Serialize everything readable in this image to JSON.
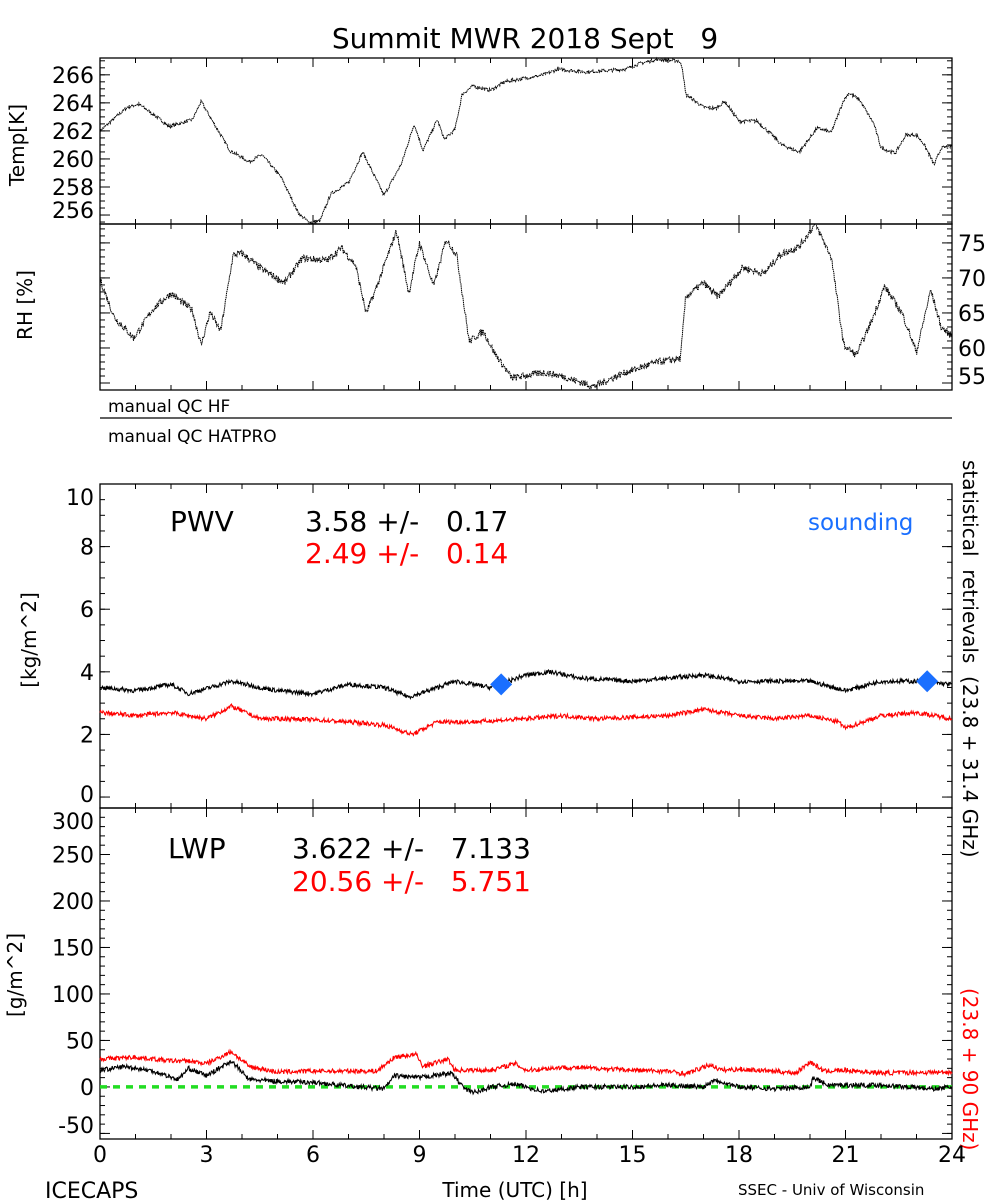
{
  "title": "Summit MWR 2018 Sept   9",
  "colors": {
    "black": "#000000",
    "red": "#ff0000",
    "sounding": "#1a6fff",
    "zero_line": "#22dd22"
  },
  "chart_data": [
    {
      "type": "line",
      "ylabel": "Temp[K]",
      "ylim": [
        255.36,
        267.2
      ],
      "xlim": [
        0,
        24
      ],
      "yticks": [
        "256",
        "258",
        "260",
        "262",
        "264",
        "266"
      ],
      "series": [
        {
          "color": "#000000",
          "x": [
            0,
            0.77,
            1.1,
            1.6,
            1.95,
            2.6,
            2.85,
            3.1,
            3.66,
            4.2,
            4.56,
            5.1,
            5.6,
            5.9,
            6.2,
            6.5,
            7.0,
            7.4,
            8.0,
            8.5,
            8.85,
            9.1,
            9.5,
            9.7,
            10.0,
            10.2,
            10.5,
            11.0,
            11.4,
            12.5,
            12.9,
            13.7,
            14.8,
            15.2,
            15.7,
            16.3,
            16.4,
            16.5,
            17.0,
            17.35,
            17.6,
            18.0,
            18.5,
            18.9,
            19.2,
            19.7,
            20.2,
            20.6,
            20.95,
            21.1,
            21.4,
            21.8,
            22.0,
            22.4,
            22.7,
            23.0,
            23.2,
            23.5,
            23.7,
            24
          ],
          "y": [
            262.0,
            263.7,
            263.9,
            263.0,
            262.3,
            262.8,
            264.1,
            263.0,
            260.6,
            259.8,
            260.3,
            258.7,
            256.1,
            255.45,
            255.6,
            257.5,
            258.3,
            260.5,
            257.4,
            259.7,
            262.5,
            260.6,
            262.8,
            261.4,
            262.1,
            264.6,
            265.2,
            264.9,
            265.5,
            266.0,
            266.4,
            266.2,
            266.4,
            266.8,
            267.1,
            267.0,
            266.6,
            264.6,
            263.7,
            263.6,
            264.1,
            262.7,
            262.7,
            261.8,
            261.0,
            260.5,
            262.2,
            261.9,
            264.2,
            264.7,
            264.2,
            262.5,
            260.8,
            260.4,
            261.7,
            261.7,
            261.1,
            259.6,
            260.8,
            260.9
          ]
        }
      ]
    },
    {
      "type": "line",
      "ylabel": "RH [%]",
      "ylim": [
        54,
        77.7
      ],
      "xlim": [
        0,
        24
      ],
      "yticks": [
        "55",
        "60",
        "65",
        "70",
        "75"
      ],
      "series": [
        {
          "color": "#000000",
          "x": [
            0,
            0.4,
            0.95,
            1.5,
            2.0,
            2.6,
            2.85,
            3.1,
            3.4,
            3.75,
            4.0,
            4.55,
            5.2,
            5.7,
            6.4,
            6.8,
            7.2,
            7.5,
            7.8,
            8.35,
            8.7,
            9.0,
            9.4,
            9.75,
            10.05,
            10.4,
            10.8,
            11.1,
            11.6,
            12.5,
            13.0,
            13.9,
            14.8,
            15.7,
            16.35,
            16.5,
            17.0,
            17.4,
            18.1,
            18.7,
            19.15,
            19.7,
            20.15,
            20.6,
            20.95,
            21.3,
            21.7,
            22.1,
            22.6,
            23.0,
            23.4,
            23.7,
            24
          ],
          "y": [
            69.8,
            64.4,
            61.4,
            65.6,
            67.8,
            65.4,
            60.4,
            65.1,
            62.4,
            73.3,
            73.5,
            71.3,
            69.3,
            72.8,
            72.5,
            74.3,
            71.8,
            64.9,
            68.8,
            76.7,
            67.8,
            75.0,
            68.8,
            75.5,
            73.3,
            60.9,
            62.4,
            59.4,
            55.7,
            56.5,
            56.0,
            54.5,
            56.5,
            58.0,
            58.5,
            67.3,
            69.3,
            67.3,
            71.5,
            70.6,
            73.3,
            74.5,
            77.7,
            73.0,
            60.4,
            59.0,
            63.4,
            68.8,
            64.9,
            59.4,
            68.3,
            62.9,
            61.7
          ]
        }
      ]
    },
    {
      "type": "line",
      "title": "PWV",
      "ylabel": "[kg/m^2]",
      "ylim": [
        -0.35,
        10
      ],
      "xlim": [
        0,
        24
      ],
      "yticks": [
        "0",
        "2",
        "4",
        "6",
        "8",
        "10"
      ],
      "stats": [
        {
          "text": "3.58 +/-   0.17",
          "color": "#000000"
        },
        {
          "text": "2.49 +/-   0.14",
          "color": "#ff0000"
        }
      ],
      "sounding_label": "sounding",
      "sounding": {
        "x": [
          11.3,
          23.3
        ],
        "y": [
          3.6,
          3.7
        ]
      },
      "series": [
        {
          "color": "#000000",
          "x": [
            0,
            1,
            2,
            2.5,
            3.7,
            4.5,
            5,
            6,
            7,
            8,
            8.7,
            9,
            10,
            10.5,
            11,
            12,
            12.7,
            13.5,
            15,
            16,
            17,
            18,
            19,
            20,
            21,
            22,
            23,
            24
          ],
          "y": [
            3.5,
            3.4,
            3.6,
            3.3,
            3.7,
            3.5,
            3.4,
            3.3,
            3.6,
            3.5,
            3.2,
            3.3,
            3.7,
            3.6,
            3.5,
            3.9,
            4.0,
            3.8,
            3.7,
            3.8,
            3.9,
            3.7,
            3.7,
            3.7,
            3.4,
            3.7,
            3.7,
            3.6
          ]
        },
        {
          "color": "#ff0000",
          "x": [
            0,
            1,
            2,
            3,
            3.7,
            4.5,
            5.5,
            7,
            8,
            8.8,
            9.5,
            10.5,
            12,
            13,
            14,
            16,
            17,
            18,
            19,
            20,
            20.8,
            21,
            22,
            23,
            24
          ],
          "y": [
            2.7,
            2.6,
            2.7,
            2.5,
            2.9,
            2.5,
            2.5,
            2.4,
            2.3,
            2.0,
            2.4,
            2.4,
            2.5,
            2.6,
            2.5,
            2.6,
            2.8,
            2.6,
            2.5,
            2.6,
            2.4,
            2.2,
            2.6,
            2.7,
            2.5
          ]
        }
      ]
    },
    {
      "type": "line",
      "title": "LWP",
      "ylabel": "[g/m^2]",
      "xlabel": "Time (UTC) [h]",
      "ylim": [
        -56,
        300
      ],
      "xlim": [
        0,
        24
      ],
      "xticks": [
        "0",
        "3",
        "6",
        "9",
        "12",
        "15",
        "18",
        "21",
        "24"
      ],
      "yticks": [
        "-50",
        "0",
        "50",
        "100",
        "150",
        "200",
        "250",
        "300"
      ],
      "stats": [
        {
          "text": "3.622 +/-   7.133",
          "color": "#000000"
        },
        {
          "text": "20.56 +/-   5.751",
          "color": "#ff0000"
        }
      ],
      "zero_line": 0,
      "series": [
        {
          "color": "#ff0000",
          "x": [
            0,
            1,
            2,
            2.5,
            3,
            3.7,
            4.2,
            5,
            6,
            7,
            7.8,
            8.3,
            8.9,
            9.1,
            9.8,
            10,
            11,
            11.7,
            12,
            13,
            14,
            15,
            16,
            16.5,
            17.2,
            17.5,
            18,
            19,
            19.6,
            20,
            20.4,
            21,
            22,
            24
          ],
          "y": [
            30,
            32,
            28,
            28,
            25,
            38,
            22,
            16,
            17,
            17,
            17,
            32,
            35,
            22,
            30,
            18,
            18,
            25,
            18,
            21,
            20,
            18,
            17,
            14,
            24,
            18,
            19,
            17,
            15,
            27,
            17,
            18,
            15,
            16
          ]
        },
        {
          "color": "#000000",
          "x": [
            0,
            0.7,
            1.5,
            2.2,
            2.5,
            3,
            3.7,
            4.2,
            5,
            6,
            7,
            8,
            8.3,
            9,
            9.9,
            10.3,
            10.6,
            11,
            11.7,
            12.5,
            13.5,
            15,
            16,
            17,
            17.3,
            18,
            19,
            20,
            20.1,
            20.5,
            22,
            23.5,
            24
          ],
          "y": [
            18,
            22,
            17,
            8,
            20,
            12,
            28,
            8,
            6,
            5,
            1,
            -2,
            12,
            10,
            15,
            -3,
            -6,
            0,
            3,
            -5,
            0,
            0,
            2,
            0,
            8,
            0,
            -2,
            0,
            10,
            2,
            2,
            -2,
            0
          ]
        }
      ]
    }
  ],
  "qc": {
    "hf": "manual QC HF",
    "hatpro": "manual QC HATPRO"
  },
  "right_labels": {
    "black": "statistical  retrievals  (23.8 + 31.4 GHz)",
    "red": "(23.8 + 90 GHz)"
  },
  "footer": {
    "left": "ICECAPS",
    "center": "Time (UTC) [h]",
    "right": "SSEC - Univ of Wisconsin"
  }
}
